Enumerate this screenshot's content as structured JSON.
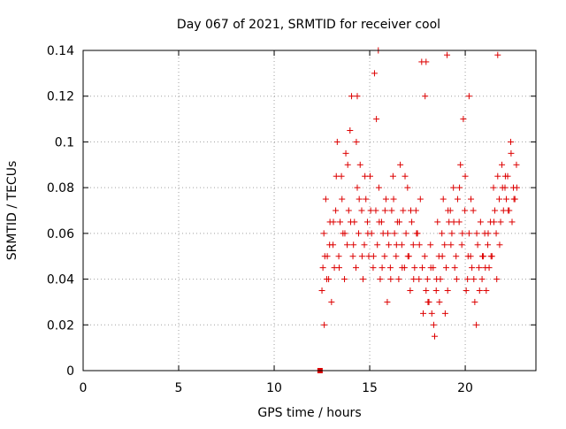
{
  "chart_data": {
    "type": "scatter",
    "title": "Day 067 of 2021, SRMTID for receiver cool",
    "xlabel": "GPS time / hours",
    "ylabel": "SRMTID / TECUs",
    "xlim": [
      0,
      23.7
    ],
    "ylim": [
      0,
      0.14
    ],
    "xticks": [
      0,
      5,
      10,
      15,
      20
    ],
    "xtick_labels": [
      "0",
      "5",
      "10",
      "15",
      "20"
    ],
    "yticks": [
      0,
      0.02,
      0.04,
      0.06,
      0.08,
      0.1,
      0.12,
      0.14
    ],
    "ytick_labels": [
      "0",
      "0.02",
      "0.04",
      "0.06",
      "0.08",
      "0.1",
      "0.12",
      "0.14"
    ],
    "grid": true,
    "marker": "plus",
    "color": "#dd0000",
    "series": [
      {
        "x": [
          12.5,
          12.55,
          12.62,
          12.7,
          12.78,
          12.85,
          12.92,
          13.0,
          13.08,
          13.15,
          13.22,
          13.3,
          13.38,
          13.45,
          13.52,
          13.6,
          13.68,
          13.75,
          13.82,
          13.9,
          13.97,
          14.05,
          14.12,
          14.2,
          14.28,
          14.35,
          14.42,
          14.5,
          14.58,
          14.65,
          14.72,
          14.8,
          14.88,
          14.95,
          15.02,
          15.1,
          15.18,
          15.25,
          15.32,
          15.4,
          15.48,
          15.55,
          15.62,
          15.7,
          15.78,
          15.85,
          15.92,
          16.0,
          16.08,
          16.15,
          16.22,
          16.3,
          16.38,
          16.45,
          16.52,
          16.6,
          16.68,
          16.75,
          16.82,
          16.9,
          16.98,
          17.05,
          17.12,
          17.2,
          17.28,
          17.35,
          17.42,
          17.5,
          17.58,
          17.65,
          17.72,
          17.8,
          17.88,
          17.95,
          18.02,
          18.1,
          18.18,
          18.25,
          18.32,
          18.4,
          18.48,
          18.55,
          18.62,
          18.7,
          18.78,
          18.85,
          18.92,
          19.0,
          19.08,
          19.15,
          19.22,
          19.3,
          19.38,
          19.45,
          19.52,
          19.6,
          19.68,
          19.75,
          19.82,
          19.9,
          19.98,
          20.05,
          20.12,
          20.2,
          20.28,
          20.35,
          20.42,
          20.5,
          20.58,
          20.65,
          20.72,
          20.8,
          20.88,
          20.95,
          21.02,
          21.1,
          21.18,
          21.25,
          21.32,
          21.4,
          21.48,
          21.55,
          21.62,
          21.7,
          21.78,
          21.85,
          21.92,
          22.0,
          22.08,
          22.15,
          22.22,
          22.3,
          22.38,
          22.45,
          22.52,
          22.6,
          22.68
        ],
        "y": [
          0.035,
          0.045,
          0.02,
          0.075,
          0.05,
          0.04,
          0.065,
          0.03,
          0.055,
          0.045,
          0.07,
          0.1,
          0.05,
          0.065,
          0.085,
          0.06,
          0.04,
          0.095,
          0.055,
          0.07,
          0.105,
          0.12,
          0.05,
          0.065,
          0.045,
          0.08,
          0.06,
          0.09,
          0.07,
          0.04,
          0.055,
          0.075,
          0.065,
          0.05,
          0.085,
          0.06,
          0.045,
          0.13,
          0.07,
          0.055,
          0.08,
          0.04,
          0.065,
          0.06,
          0.05,
          0.075,
          0.03,
          0.055,
          0.045,
          0.07,
          0.085,
          0.06,
          0.05,
          0.065,
          0.04,
          0.09,
          0.055,
          0.07,
          0.045,
          0.06,
          0.08,
          0.05,
          0.035,
          0.065,
          0.055,
          0.045,
          0.07,
          0.06,
          0.04,
          0.075,
          0.135,
          0.025,
          0.05,
          0.035,
          0.04,
          0.03,
          0.055,
          0.025,
          0.045,
          0.015,
          0.035,
          0.065,
          0.05,
          0.04,
          0.06,
          0.075,
          0.055,
          0.045,
          0.035,
          0.065,
          0.07,
          0.06,
          0.08,
          0.045,
          0.05,
          0.075,
          0.065,
          0.09,
          0.055,
          0.11,
          0.07,
          0.035,
          0.04,
          0.06,
          0.05,
          0.045,
          0.07,
          0.03,
          0.02,
          0.055,
          0.045,
          0.065,
          0.04,
          0.05,
          0.06,
          0.035,
          0.055,
          0.045,
          0.065,
          0.05,
          0.08,
          0.07,
          0.06,
          0.085,
          0.075,
          0.065,
          0.09,
          0.07,
          0.08,
          0.075,
          0.085,
          0.07,
          0.1,
          0.065,
          0.08,
          0.075,
          0.09
        ]
      }
    ],
    "extra_points": [
      {
        "x": 12.6,
        "y": 0.06
      },
      {
        "x": 12.65,
        "y": 0.05
      },
      {
        "x": 12.75,
        "y": 0.04
      },
      {
        "x": 12.9,
        "y": 0.055
      },
      {
        "x": 13.1,
        "y": 0.065
      },
      {
        "x": 13.25,
        "y": 0.085
      },
      {
        "x": 13.4,
        "y": 0.045
      },
      {
        "x": 13.55,
        "y": 0.075
      },
      {
        "x": 13.7,
        "y": 0.06
      },
      {
        "x": 13.85,
        "y": 0.09
      },
      {
        "x": 14.0,
        "y": 0.065
      },
      {
        "x": 14.15,
        "y": 0.055
      },
      {
        "x": 14.3,
        "y": 0.1
      },
      {
        "x": 14.45,
        "y": 0.075
      },
      {
        "x": 14.6,
        "y": 0.05
      },
      {
        "x": 14.75,
        "y": 0.085
      },
      {
        "x": 14.9,
        "y": 0.06
      },
      {
        "x": 15.05,
        "y": 0.07
      },
      {
        "x": 15.2,
        "y": 0.05
      },
      {
        "x": 15.35,
        "y": 0.11
      },
      {
        "x": 15.5,
        "y": 0.065
      },
      {
        "x": 15.65,
        "y": 0.045
      },
      {
        "x": 15.8,
        "y": 0.07
      },
      {
        "x": 15.95,
        "y": 0.06
      },
      {
        "x": 16.1,
        "y": 0.04
      },
      {
        "x": 16.25,
        "y": 0.075
      },
      {
        "x": 16.4,
        "y": 0.055
      },
      {
        "x": 16.55,
        "y": 0.065
      },
      {
        "x": 16.7,
        "y": 0.045
      },
      {
        "x": 16.85,
        "y": 0.085
      },
      {
        "x": 17.0,
        "y": 0.05
      },
      {
        "x": 17.15,
        "y": 0.07
      },
      {
        "x": 17.3,
        "y": 0.04
      },
      {
        "x": 17.45,
        "y": 0.06
      },
      {
        "x": 17.6,
        "y": 0.055
      },
      {
        "x": 17.75,
        "y": 0.045
      },
      {
        "x": 17.9,
        "y": 0.12
      },
      {
        "x": 18.05,
        "y": 0.03
      },
      {
        "x": 18.2,
        "y": 0.045
      },
      {
        "x": 18.35,
        "y": 0.02
      },
      {
        "x": 18.5,
        "y": 0.04
      },
      {
        "x": 18.65,
        "y": 0.03
      },
      {
        "x": 18.8,
        "y": 0.05
      },
      {
        "x": 18.95,
        "y": 0.025
      },
      {
        "x": 19.1,
        "y": 0.07
      },
      {
        "x": 19.25,
        "y": 0.055
      },
      {
        "x": 19.4,
        "y": 0.065
      },
      {
        "x": 19.55,
        "y": 0.04
      },
      {
        "x": 19.7,
        "y": 0.08
      },
      {
        "x": 19.85,
        "y": 0.06
      },
      {
        "x": 20.0,
        "y": 0.085
      },
      {
        "x": 20.15,
        "y": 0.05
      },
      {
        "x": 20.3,
        "y": 0.075
      },
      {
        "x": 20.45,
        "y": 0.04
      },
      {
        "x": 20.6,
        "y": 0.06
      },
      {
        "x": 20.75,
        "y": 0.035
      },
      {
        "x": 20.9,
        "y": 0.05
      },
      {
        "x": 21.05,
        "y": 0.045
      },
      {
        "x": 21.2,
        "y": 0.06
      },
      {
        "x": 21.35,
        "y": 0.05
      },
      {
        "x": 21.5,
        "y": 0.065
      },
      {
        "x": 21.65,
        "y": 0.04
      },
      {
        "x": 21.8,
        "y": 0.055
      },
      {
        "x": 21.95,
        "y": 0.08
      },
      {
        "x": 22.1,
        "y": 0.085
      },
      {
        "x": 22.25,
        "y": 0.07
      },
      {
        "x": 22.4,
        "y": 0.095
      },
      {
        "x": 22.55,
        "y": 0.075
      },
      {
        "x": 22.7,
        "y": 0.08
      },
      {
        "x": 15.45,
        "y": 0.14
      },
      {
        "x": 17.95,
        "y": 0.135
      },
      {
        "x": 21.7,
        "y": 0.138
      },
      {
        "x": 19.05,
        "y": 0.138
      },
      {
        "x": 20.2,
        "y": 0.12
      },
      {
        "x": 14.35,
        "y": 0.12
      }
    ],
    "square_marker": {
      "x": 12.4,
      "y": 0.0
    }
  }
}
